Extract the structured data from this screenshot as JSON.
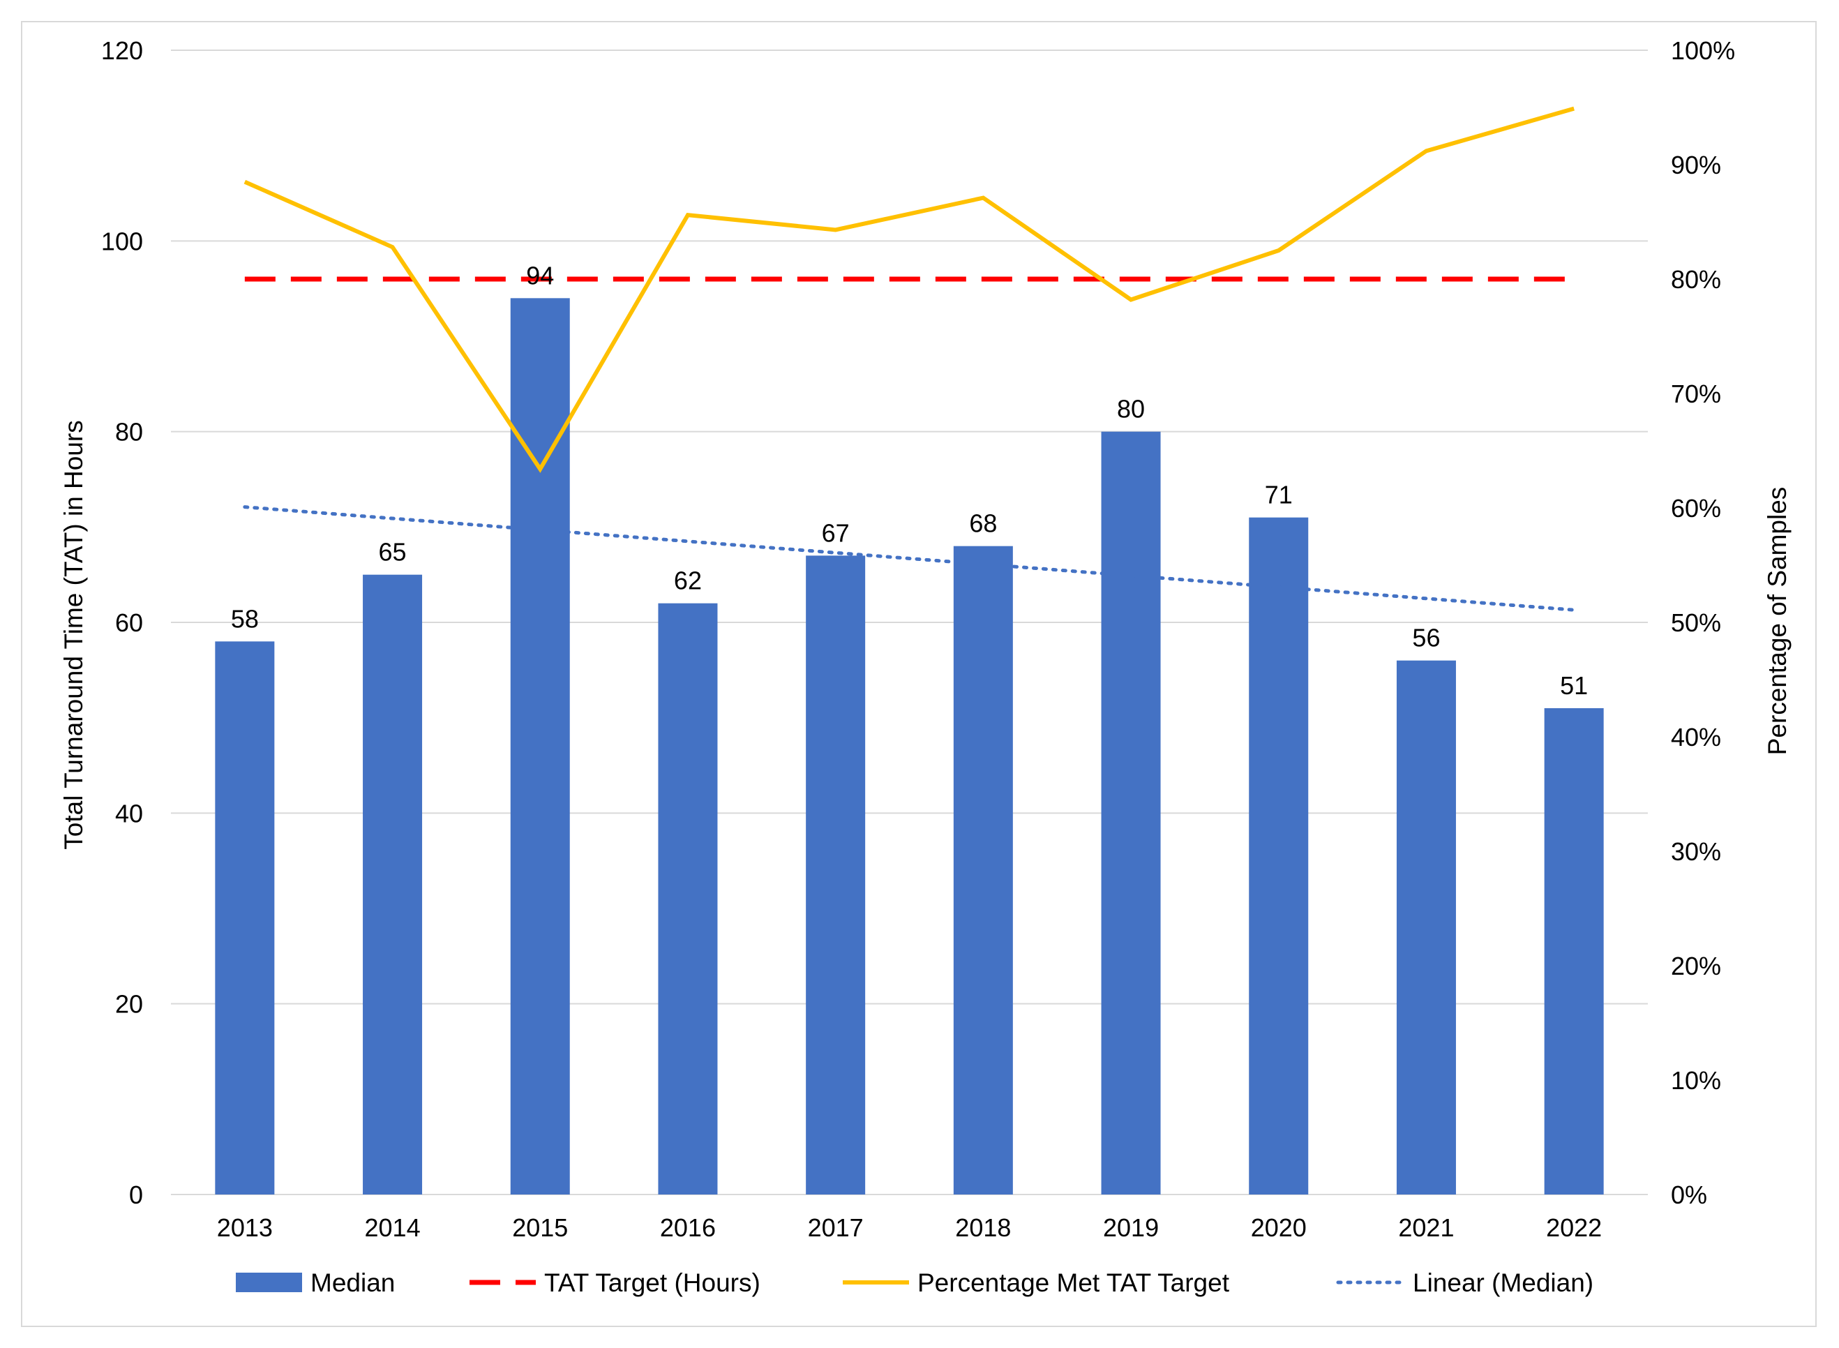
{
  "chart_data": {
    "type": "bar",
    "title": "",
    "categories": [
      "2013",
      "2014",
      "2015",
      "2016",
      "2017",
      "2018",
      "2019",
      "2020",
      "2021",
      "2022"
    ],
    "series": [
      {
        "name": "Median",
        "kind": "bar",
        "axis": "left",
        "color": "#4472c4",
        "values": [
          58,
          65,
          94,
          62,
          67,
          68,
          80,
          71,
          56,
          51
        ],
        "data_labels": [
          "58",
          "65",
          "94",
          "62",
          "67",
          "68",
          "80",
          "71",
          "56",
          "51"
        ]
      },
      {
        "name": "TAT Target (Hours)",
        "kind": "line-dashed",
        "axis": "left",
        "color": "#ff0000",
        "values": [
          96,
          96,
          96,
          96,
          96,
          96,
          96,
          96,
          96,
          96
        ]
      },
      {
        "name": "Percentage Met TAT Target",
        "kind": "line",
        "axis": "right",
        "color": "#ffc000",
        "values": [
          88.5,
          82.8,
          63.4,
          85.6,
          84.3,
          87.1,
          78.2,
          82.5,
          91.2,
          94.9
        ]
      },
      {
        "name": "Linear (Median)",
        "kind": "line-dotted",
        "axis": "left",
        "color": "#4472c4",
        "values": [
          72.1,
          70.9,
          69.7,
          68.5,
          67.3,
          66.1,
          64.9,
          63.7,
          62.5,
          61.3
        ]
      }
    ],
    "ylabel": "Total Turnaround Time (TAT) in Hours",
    "ylabel_right": "Percentage of Samples",
    "xlabel": "",
    "ylim": [
      0,
      120
    ],
    "yticks": [
      "0",
      "20",
      "40",
      "60",
      "80",
      "100",
      "120"
    ],
    "ylim_right": [
      0,
      100
    ],
    "yticks_right": [
      "0%",
      "10%",
      "20%",
      "30%",
      "40%",
      "50%",
      "60%",
      "70%",
      "80%",
      "90%",
      "100%"
    ],
    "grid": "horizontal",
    "legend_position": "bottom"
  }
}
